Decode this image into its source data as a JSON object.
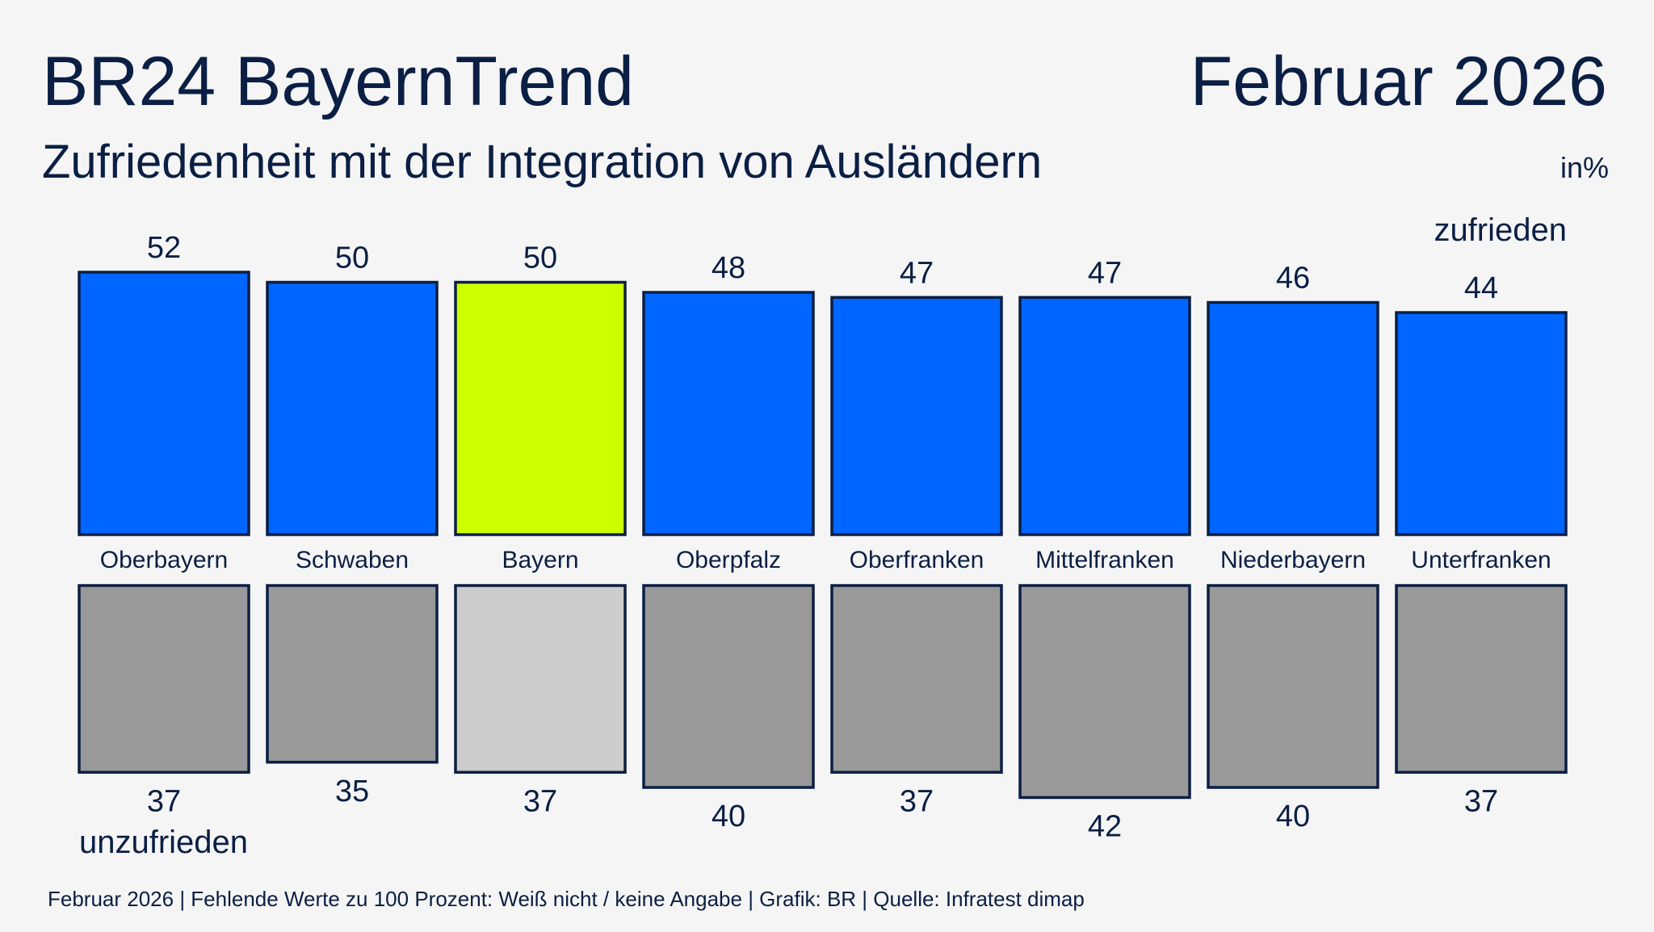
{
  "chart_data": {
    "type": "bar",
    "title": "BR24 BayernTrend",
    "date": "Februar 2026",
    "subtitle": "Zufriedenheit mit der Integration von Ausländern",
    "unit": "in%",
    "note": "Februar 2026 | Fehlende Werte zu 100 Prozent: Weiß nicht / keine Angabe | Grafik: BR | Quelle: Infratest dimap",
    "categories": [
      "Oberbayern",
      "Schwaben",
      "Bayern",
      "Oberpfalz",
      "Oberfranken",
      "Mittelfranken",
      "Niederbayern",
      "Unterfranken"
    ],
    "series": [
      {
        "name": "zufrieden",
        "color": "#0066ff",
        "colors": [
          "#0066ff",
          "#0066ff",
          "#ccff00",
          "#0066ff",
          "#0066ff",
          "#0066ff",
          "#0066ff",
          "#0066ff"
        ],
        "values": [
          52,
          50,
          50,
          48,
          47,
          47,
          46,
          44
        ]
      },
      {
        "name": "unzufrieden",
        "color": "#999999",
        "colors": [
          "#999999",
          "#999999",
          "#cccccc",
          "#999999",
          "#999999",
          "#999999",
          "#999999",
          "#999999"
        ],
        "values": [
          37,
          35,
          37,
          40,
          37,
          42,
          40,
          37
        ]
      }
    ]
  }
}
